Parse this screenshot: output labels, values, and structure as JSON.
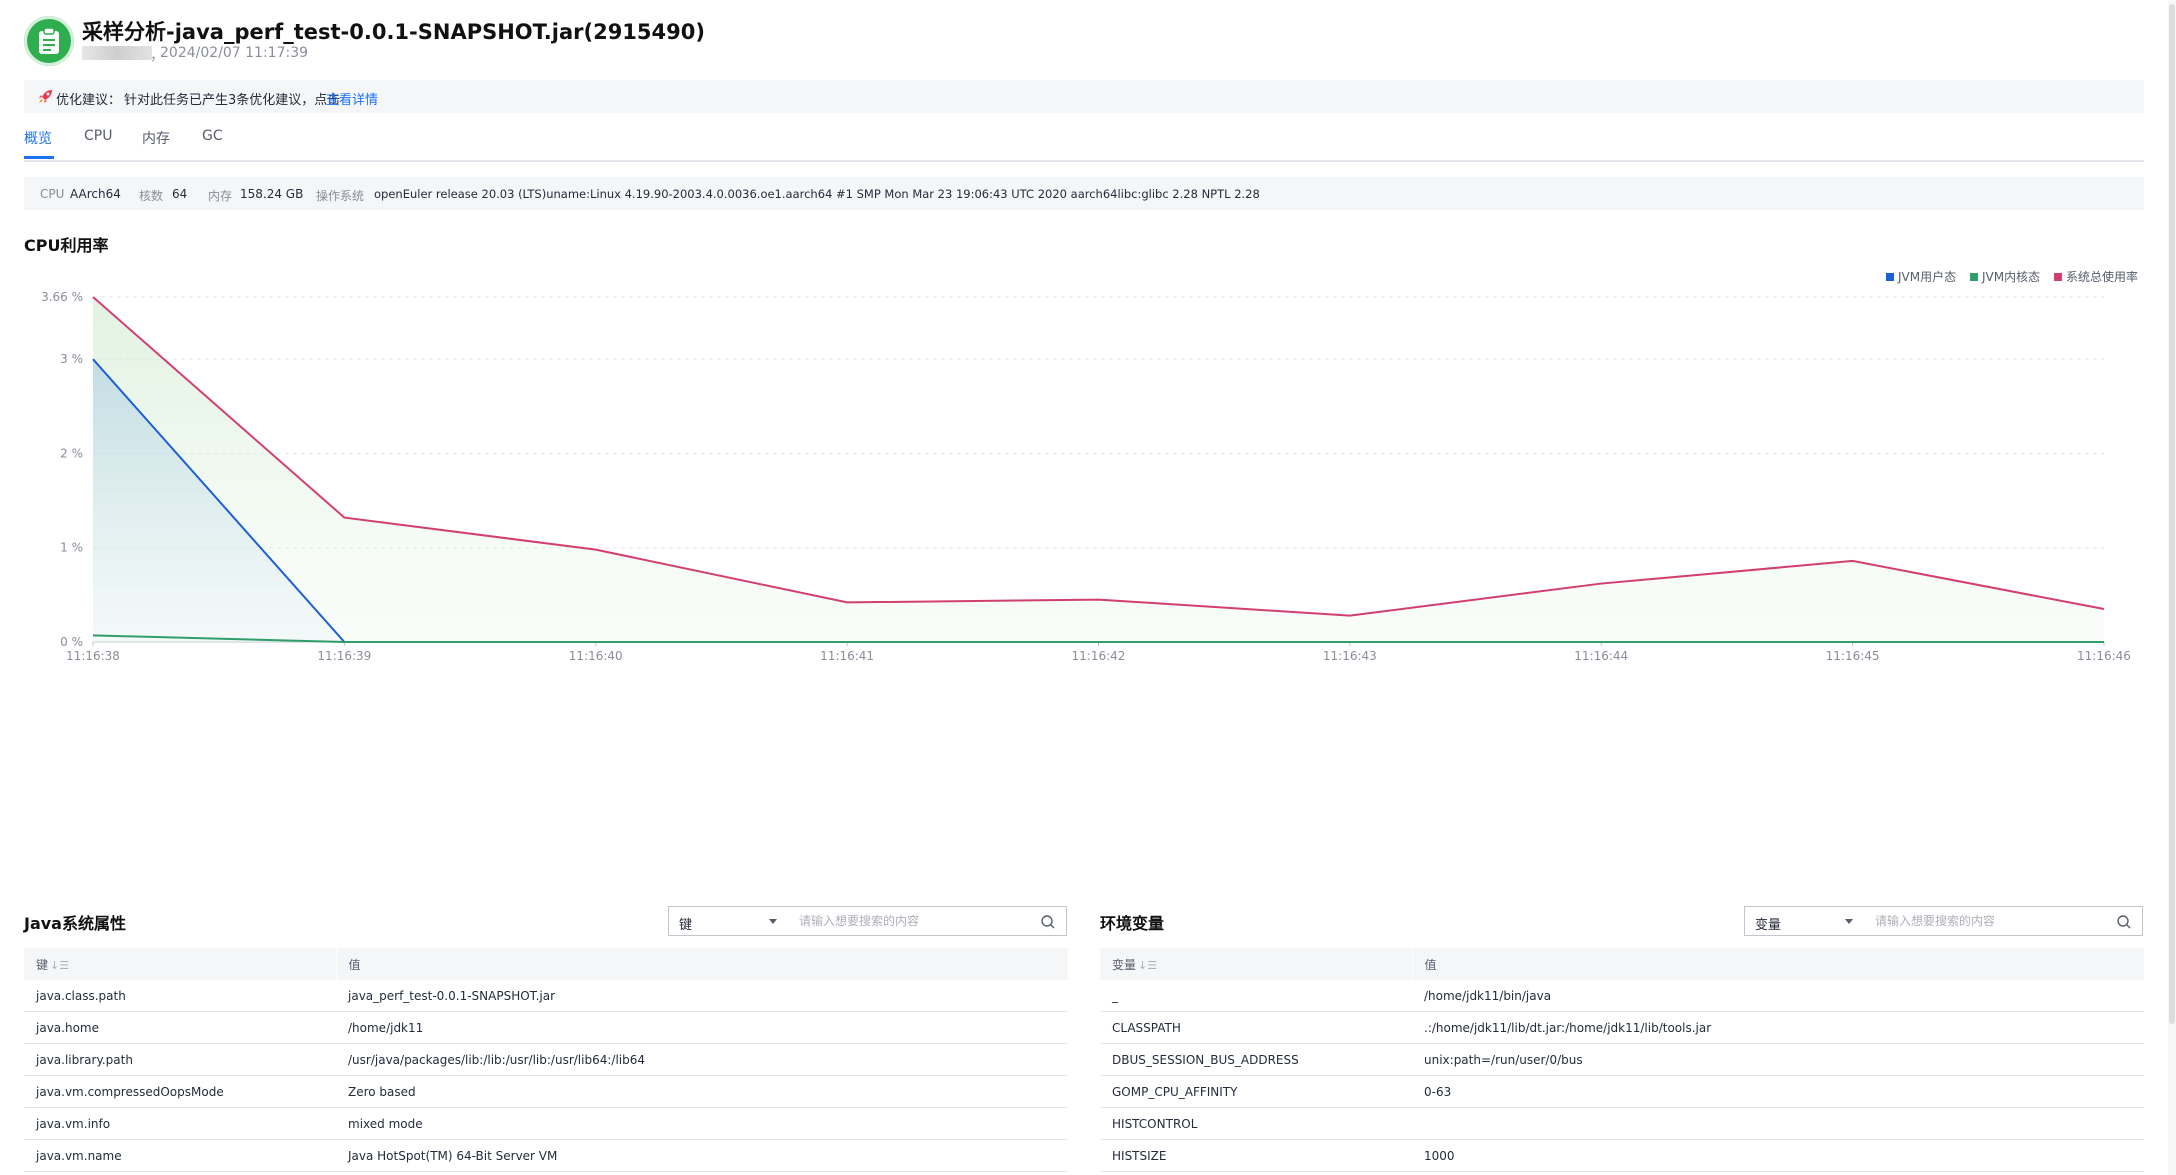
{
  "header": {
    "title": "采样分析-java_perf_test-0.0.1-SNAPSHOT.jar(2915490)",
    "separator": "，",
    "timestamp": "2024/02/07 11:17:39"
  },
  "suggestion": {
    "label": "优化建议：",
    "text": "针对此任务已产生3条优化建议，点击",
    "link": "查看详情"
  },
  "tabs": [
    {
      "label": "概览",
      "active": true
    },
    {
      "label": "CPU",
      "active": false
    },
    {
      "label": "内存",
      "active": false
    },
    {
      "label": "GC",
      "active": false
    }
  ],
  "info": {
    "cpu_key": "CPU",
    "cpu_val": "AArch64",
    "cores_key": "核数",
    "cores_val": "64",
    "mem_key": "内存",
    "mem_val": "158.24 GB",
    "os_key": "操作系统",
    "os_val": "openEuler release 20.03 (LTS)uname:Linux 4.19.90-2003.4.0.0036.oe1.aarch64 #1 SMP Mon Mar 23 19:06:43 UTC 2020 aarch64libc:glibc 2.28 NPTL 2.28"
  },
  "chart_section_title": "CPU利用率",
  "chart_data": {
    "type": "area",
    "x": [
      "11:16:38",
      "11:16:39",
      "11:16:40",
      "11:16:41",
      "11:16:42",
      "11:16:43",
      "11:16:44",
      "11:16:45",
      "11:16:46"
    ],
    "y_ticks": [
      "0 %",
      "1 %",
      "2 %",
      "3 %",
      "3.66 %"
    ],
    "ylim": [
      0,
      3.66
    ],
    "grid": true,
    "legend_position": "top-right",
    "series": [
      {
        "name": "JVM用户态",
        "color": "#1d5fd6",
        "values": [
          3.0,
          0.0,
          0.0,
          0.0,
          0.0,
          0.0,
          0.0,
          0.0,
          0.0
        ]
      },
      {
        "name": "JVM内核态",
        "color": "#2e9e6a",
        "values": [
          0.07,
          0.0,
          0.0,
          0.0,
          0.0,
          0.0,
          0.0,
          0.0,
          0.0
        ]
      },
      {
        "name": "系统总使用率",
        "color": "#d23f6f",
        "values": [
          3.66,
          1.32,
          0.98,
          0.42,
          0.45,
          0.28,
          0.62,
          0.86,
          0.35
        ]
      }
    ]
  },
  "java_props": {
    "title": "Java系统属性",
    "select_value": "键",
    "search_placeholder": "请输入想要搜索的内容",
    "col_key": "键",
    "col_val": "值",
    "rows": [
      {
        "k": "java.class.path",
        "v": "java_perf_test-0.0.1-SNAPSHOT.jar"
      },
      {
        "k": "java.home",
        "v": "/home/jdk11"
      },
      {
        "k": "java.library.path",
        "v": "/usr/java/packages/lib:/lib:/usr/lib:/usr/lib64:/lib64"
      },
      {
        "k": "java.vm.compressedOopsMode",
        "v": "Zero based"
      },
      {
        "k": "java.vm.info",
        "v": "mixed mode"
      },
      {
        "k": "java.vm.name",
        "v": "Java HotSpot(TM) 64-Bit Server VM"
      }
    ]
  },
  "env_vars": {
    "title": "环境变量",
    "select_value": "变量",
    "search_placeholder": "请输入想要搜索的内容",
    "col_key": "变量",
    "col_val": "值",
    "rows": [
      {
        "k": "_",
        "v": "/home/jdk11/bin/java"
      },
      {
        "k": "CLASSPATH",
        "v": ".:/home/jdk11/lib/dt.jar:/home/jdk11/lib/tools.jar"
      },
      {
        "k": "DBUS_SESSION_BUS_ADDRESS",
        "v": "unix:path=/run/user/0/bus"
      },
      {
        "k": "GOMP_CPU_AFFINITY",
        "v": "0-63"
      },
      {
        "k": "HISTCONTROL",
        "v": ""
      },
      {
        "k": "HISTSIZE",
        "v": "1000"
      }
    ]
  }
}
